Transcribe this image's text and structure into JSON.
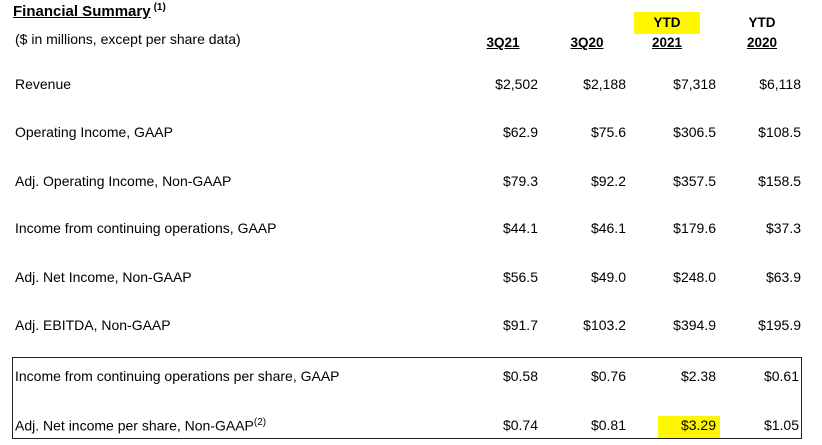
{
  "title": "Financial Summary",
  "title_note": "(1)",
  "subtitle": "($ in millions, except per share data)",
  "columns": [
    {
      "line1": "",
      "line2": "3Q21"
    },
    {
      "line1": "",
      "line2": "3Q20"
    },
    {
      "line1": "YTD",
      "line2": "2021"
    },
    {
      "line1": "YTD",
      "line2": "2020"
    }
  ],
  "rows": [
    {
      "label": "Revenue",
      "values": [
        "$2,502",
        "$2,188",
        "$7,318",
        "$6,118"
      ]
    },
    {
      "label": "Operating Income, GAAP",
      "values": [
        "$62.9",
        "$75.6",
        "$306.5",
        "$108.5"
      ]
    },
    {
      "label": "Adj. Operating Income, Non-GAAP",
      "values": [
        "$79.3",
        "$92.2",
        "$357.5",
        "$158.5"
      ]
    },
    {
      "label": "Income from continuing operations, GAAP",
      "values": [
        "$44.1",
        "$46.1",
        "$179.6",
        "$37.3"
      ]
    },
    {
      "label": "Adj. Net Income, Non-GAAP",
      "values": [
        "$56.5",
        "$49.0",
        "$248.0",
        "$63.9"
      ]
    },
    {
      "label": "Adj. EBITDA, Non-GAAP",
      "values": [
        "$91.7",
        "$103.2",
        "$394.9",
        "$195.9"
      ]
    },
    {
      "label": "Income from continuing operations per share, GAAP",
      "values": [
        "$0.58",
        "$0.76",
        "$2.38",
        "$0.61"
      ]
    },
    {
      "label": "Adj. Net income per share, Non-GAAP",
      "label_note": "(2)",
      "values": [
        "$0.74",
        "$0.81",
        "$3.29",
        "$1.05"
      ]
    }
  ],
  "highlight_color": "#fff700"
}
